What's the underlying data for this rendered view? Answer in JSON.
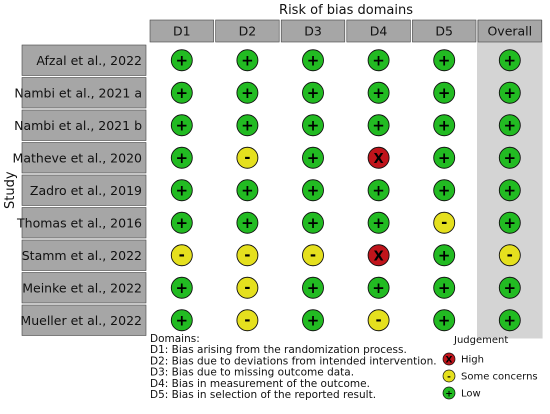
{
  "chart_data": {
    "type": "table",
    "title": "Risk of bias domains",
    "ylabel": "Study",
    "columns": [
      "D1",
      "D2",
      "D3",
      "D4",
      "D5",
      "Overall"
    ],
    "rows": [
      {
        "study": "Afzal et al., 2022",
        "judgements": [
          "low",
          "low",
          "low",
          "low",
          "low",
          "low"
        ]
      },
      {
        "study": "Nambi et al., 2021 a",
        "judgements": [
          "low",
          "low",
          "low",
          "low",
          "low",
          "low"
        ]
      },
      {
        "study": "Nambi et al., 2021 b",
        "judgements": [
          "low",
          "low",
          "low",
          "low",
          "low",
          "low"
        ]
      },
      {
        "study": "Matheve et al., 2020",
        "judgements": [
          "low",
          "some",
          "low",
          "high",
          "low",
          "low"
        ]
      },
      {
        "study": "Zadro et al., 2019",
        "judgements": [
          "low",
          "low",
          "low",
          "low",
          "low",
          "low"
        ]
      },
      {
        "study": "Thomas et al., 2016",
        "judgements": [
          "low",
          "low",
          "low",
          "low",
          "some",
          "low"
        ]
      },
      {
        "study": "Stamm et al., 2022",
        "judgements": [
          "some",
          "some",
          "some",
          "high",
          "low",
          "some"
        ]
      },
      {
        "study": "Meinke et al., 2022",
        "judgements": [
          "low",
          "some",
          "low",
          "low",
          "low",
          "low"
        ]
      },
      {
        "study": "Mueller et al., 2022",
        "judgements": [
          "low",
          "some",
          "low",
          "some",
          "low",
          "low"
        ]
      }
    ],
    "symbols": {
      "low": "+",
      "some": "-",
      "high": "X"
    },
    "colors": {
      "low": "#22bb22",
      "some": "#e5e01e",
      "high": "#c0141b"
    }
  },
  "domains": {
    "heading": "Domains:",
    "lines": [
      "D1: Bias arising from the randomization process.",
      "D2: Bias due to deviations from intended intervention.",
      "D3: Bias due to missing outcome data.",
      "D4: Bias in measurement of the outcome.",
      "D5: Bias in selection of the reported result."
    ]
  },
  "legend": {
    "title": "Judgement",
    "items": [
      {
        "key": "high",
        "label": "High"
      },
      {
        "key": "some",
        "label": "Some concerns"
      },
      {
        "key": "low",
        "label": "Low"
      }
    ]
  }
}
